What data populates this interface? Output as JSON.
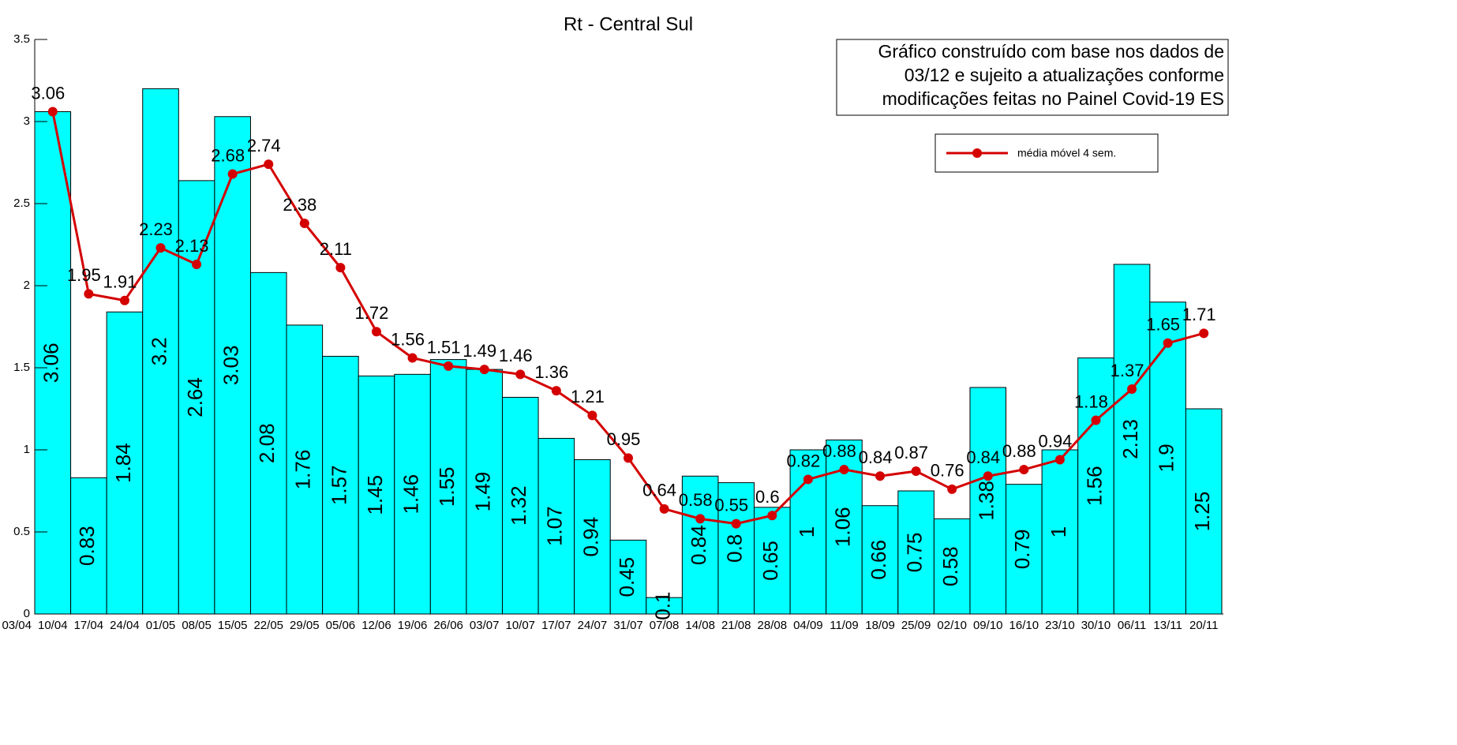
{
  "chart_data": {
    "type": "bar_line",
    "title": "Rt - Central Sul",
    "annotation": [
      "Gráfico construído com base nos dados de",
      "03/12 e sujeito a atualizações conforme",
      "modificações feitas no Painel Covid-19 ES"
    ],
    "categories": [
      "03/04",
      "10/04",
      "17/04",
      "24/04",
      "01/05",
      "08/05",
      "15/05",
      "22/05",
      "29/05",
      "05/06",
      "12/06",
      "19/06",
      "26/06",
      "03/07",
      "10/07",
      "17/07",
      "24/07",
      "31/07",
      "07/08",
      "14/08",
      "21/08",
      "28/08",
      "04/09",
      "11/09",
      "18/09",
      "25/09",
      "02/10",
      "09/10",
      "16/10",
      "23/10",
      "30/10",
      "06/11",
      "13/11",
      "20/11"
    ],
    "series": [
      {
        "name": null,
        "kind": "bar",
        "color": "#00ffff",
        "values": [
          null,
          3.06,
          0.83,
          1.84,
          3.2,
          2.64,
          3.03,
          2.08,
          1.76,
          1.57,
          1.45,
          1.46,
          1.55,
          1.49,
          1.32,
          1.07,
          0.94,
          0.45,
          0.1,
          0.84,
          0.8,
          0.65,
          1,
          1.06,
          0.66,
          0.75,
          0.58,
          1.38,
          0.79,
          1,
          1.56,
          2.13,
          1.9,
          1.25
        ]
      },
      {
        "name": "média móvel 4 sem.",
        "kind": "line",
        "color": "#d40000",
        "values": [
          null,
          3.06,
          1.95,
          1.91,
          2.23,
          2.13,
          2.68,
          2.74,
          2.38,
          2.11,
          1.72,
          1.56,
          1.51,
          1.49,
          1.46,
          1.36,
          1.21,
          0.95,
          0.64,
          0.58,
          0.55,
          0.6,
          0.82,
          0.88,
          0.84,
          0.87,
          0.76,
          0.84,
          0.88,
          0.94,
          1.18,
          1.37,
          1.65,
          1.71
        ]
      }
    ],
    "ylim": [
      0,
      3.5
    ],
    "yticks": [
      0,
      0.5,
      1,
      1.5,
      2,
      2.5,
      3,
      3.5
    ],
    "grid": false,
    "legend": "upper right"
  }
}
